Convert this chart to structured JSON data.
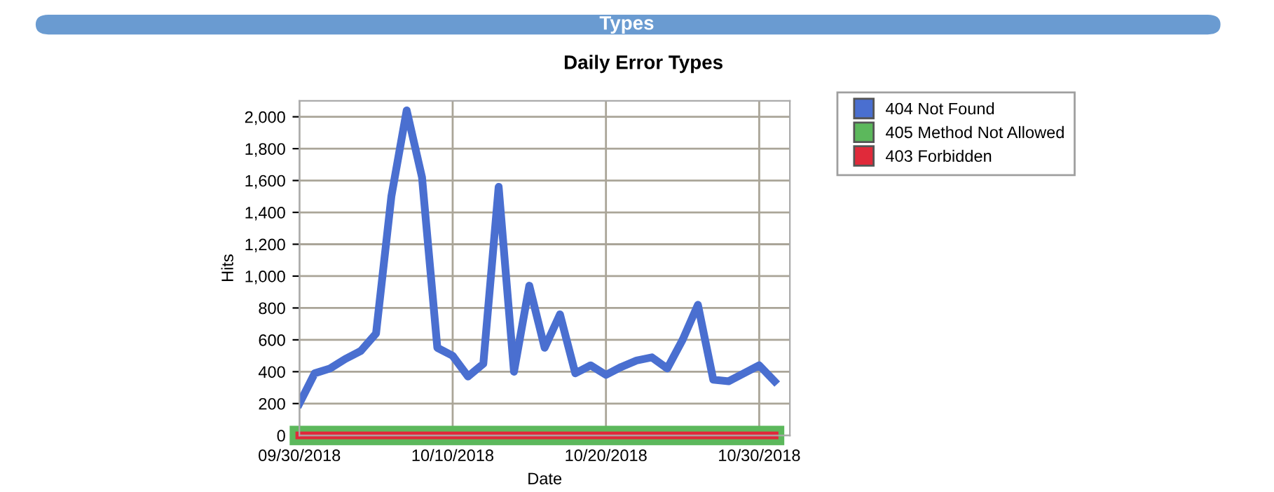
{
  "chart_data": {
    "type": "line",
    "title": "Types",
    "subtitle": "Daily Error Types",
    "xlabel": "Date",
    "ylabel": "Hits",
    "x": [
      "2018-09-30",
      "2018-10-01",
      "2018-10-02",
      "2018-10-03",
      "2018-10-04",
      "2018-10-05",
      "2018-10-06",
      "2018-10-07",
      "2018-10-08",
      "2018-10-09",
      "2018-10-10",
      "2018-10-11",
      "2018-10-12",
      "2018-10-13",
      "2018-10-14",
      "2018-10-15",
      "2018-10-16",
      "2018-10-17",
      "2018-10-18",
      "2018-10-19",
      "2018-10-20",
      "2018-10-21",
      "2018-10-22",
      "2018-10-23",
      "2018-10-24",
      "2018-10-25",
      "2018-10-26",
      "2018-10-27",
      "2018-10-28",
      "2018-10-29",
      "2018-10-30",
      "2018-10-31"
    ],
    "series": [
      {
        "name": "404 Not Found",
        "color": "#4a6fd0",
        "values": [
          200,
          390,
          420,
          480,
          530,
          640,
          1500,
          2040,
          1620,
          550,
          500,
          370,
          450,
          1560,
          400,
          940,
          550,
          760,
          390,
          440,
          380,
          430,
          470,
          490,
          420,
          600,
          820,
          350,
          340,
          390,
          440,
          340
        ]
      },
      {
        "name": "405 Method Not Allowed",
        "color": "#5cb85c",
        "values": [
          0,
          0,
          0,
          0,
          0,
          0,
          0,
          0,
          0,
          0,
          0,
          0,
          0,
          0,
          0,
          0,
          0,
          0,
          0,
          0,
          0,
          0,
          0,
          0,
          0,
          0,
          0,
          0,
          0,
          0,
          0,
          0
        ]
      },
      {
        "name": "403 Forbidden",
        "color": "#e02a3a",
        "values": [
          0,
          0,
          0,
          0,
          0,
          0,
          0,
          0,
          0,
          0,
          0,
          0,
          0,
          0,
          0,
          0,
          0,
          0,
          0,
          0,
          0,
          0,
          0,
          0,
          0,
          0,
          0,
          0,
          0,
          0,
          0,
          0
        ]
      }
    ],
    "xlim": [
      "2018-09-30",
      "2018-11-01"
    ],
    "xticks": [
      {
        "value": "2018-09-30",
        "label": "09/30/2018"
      },
      {
        "value": "2018-10-10",
        "label": "10/10/2018"
      },
      {
        "value": "2018-10-20",
        "label": "10/20/2018"
      },
      {
        "value": "2018-10-30",
        "label": "10/30/2018"
      }
    ],
    "ylim": [
      0,
      2100
    ],
    "yticks": [
      {
        "value": 0,
        "label": "0"
      },
      {
        "value": 200,
        "label": "200"
      },
      {
        "value": 400,
        "label": "400"
      },
      {
        "value": 600,
        "label": "600"
      },
      {
        "value": 800,
        "label": "800"
      },
      {
        "value": 1000,
        "label": "1,000"
      },
      {
        "value": 1200,
        "label": "1,200"
      },
      {
        "value": 1400,
        "label": "1,400"
      },
      {
        "value": 1600,
        "label": "1,600"
      },
      {
        "value": 1800,
        "label": "1,800"
      },
      {
        "value": 2000,
        "label": "2,000"
      }
    ],
    "grid": true,
    "legend": "right",
    "marker": "none",
    "line_style": "solid"
  }
}
